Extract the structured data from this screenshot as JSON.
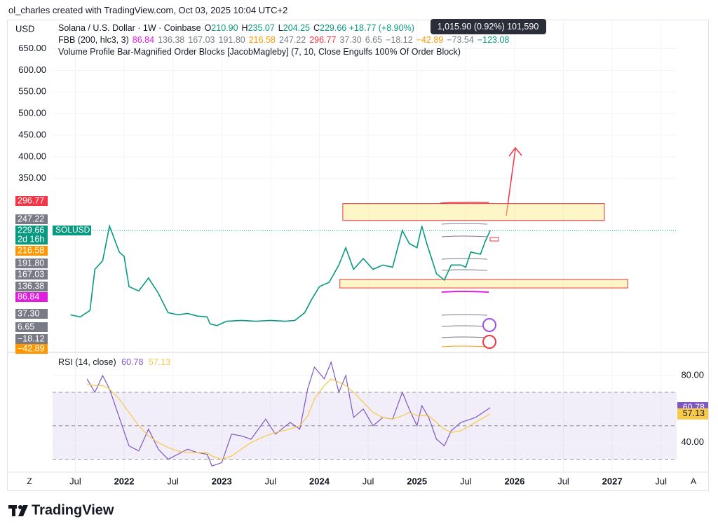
{
  "header": {
    "credit": "ol_charles created with TradingView.com, Oct 03, 2025 10:04 UTC+2",
    "currency": "USD",
    "tooltip": "1,015.90 (0.92%) 101,590"
  },
  "legend": {
    "symbol": "Solana / U.S. Dollar · 1W · Coinbase",
    "ohlc": [
      {
        "key": "O",
        "value": "210.90"
      },
      {
        "key": "H",
        "value": "235.07"
      },
      {
        "key": "L",
        "value": "204.25"
      },
      {
        "key": "C",
        "value": "229.66"
      }
    ],
    "change": "+18.77 (+8.90%)",
    "fbb_name": "FBB (200, hlc3, 3)",
    "fbb_values": [
      {
        "text": "86.84",
        "color": "#e01ee0"
      },
      {
        "text": "136.38",
        "color": "#787b86"
      },
      {
        "text": "167.03",
        "color": "#787b86"
      },
      {
        "text": "191.80",
        "color": "#787b86"
      },
      {
        "text": "216.58",
        "color": "#ff9800"
      },
      {
        "text": "247.22",
        "color": "#787b86"
      },
      {
        "text": "296.77",
        "color": "#f23645"
      },
      {
        "text": "37.30",
        "color": "#787b86"
      },
      {
        "text": "6.65",
        "color": "#787b86"
      },
      {
        "text": "−18.12",
        "color": "#787b86"
      },
      {
        "text": "−42.89",
        "color": "#ff9800"
      },
      {
        "text": "−73.54",
        "color": "#787b86"
      },
      {
        "text": "−123.08",
        "color": "#089981"
      }
    ],
    "volume_profile": "Volume Profile Bar-Magnified Order Blocks [JacobMagleby] (7, 10, Close Engulfs 100% Of Order Block)"
  },
  "badges": {
    "ticker": "SOLUSD",
    "countdown": "2d 16h"
  },
  "chart_data": [
    {
      "type": "line",
      "xlim": [
        2021.267,
        2027.66
      ],
      "ylim": [
        -47,
        714
      ],
      "xticks": [
        {
          "value": 2021.5,
          "label": "Jul"
        },
        2022,
        {
          "value": 2022.5,
          "label": "Jul"
        },
        2023,
        {
          "value": 2023.5,
          "label": "Jul"
        },
        2024,
        {
          "value": 2024.5,
          "label": "Jul"
        },
        2025,
        {
          "value": 2025.5,
          "label": "Jul"
        },
        2026,
        {
          "value": 2026.5,
          "label": "Jul"
        },
        2027,
        {
          "value": 2027.5,
          "label": "Jul"
        }
      ],
      "yticks": [
        {
          "value": 350,
          "label": "350.00"
        },
        {
          "value": 400,
          "label": "400.00"
        },
        {
          "value": 450,
          "label": "450.00"
        },
        {
          "value": 500,
          "label": "500.00"
        },
        {
          "value": 550,
          "label": "550.00"
        },
        {
          "value": 600,
          "label": "600.00"
        },
        {
          "value": 650,
          "label": "650.00"
        }
      ],
      "grid": true,
      "x": [
        2021.45,
        2021.55,
        2021.65,
        2021.7,
        2021.78,
        2021.85,
        2021.95,
        2022.0,
        2022.05,
        2022.15,
        2022.25,
        2022.35,
        2022.45,
        2022.55,
        2022.65,
        2022.75,
        2022.85,
        2022.88,
        2022.95,
        2023.05,
        2023.2,
        2023.35,
        2023.5,
        2023.65,
        2023.75,
        2023.85,
        2023.92,
        2024.0,
        2024.1,
        2024.2,
        2024.27,
        2024.35,
        2024.45,
        2024.55,
        2024.65,
        2024.75,
        2024.85,
        2024.92,
        2025.0,
        2025.05,
        2025.1,
        2025.2,
        2025.28,
        2025.35,
        2025.45,
        2025.5,
        2025.55,
        2025.65,
        2025.7,
        2025.75
      ],
      "series": [
        {
          "name": "SOLUSD",
          "color": "#089981",
          "values": [
            35,
            30,
            45,
            140,
            160,
            240,
            180,
            170,
            100,
            90,
            120,
            85,
            40,
            35,
            38,
            32,
            30,
            14,
            10,
            20,
            22,
            20,
            22,
            20,
            22,
            40,
            70,
            100,
            110,
            150,
            190,
            140,
            165,
            140,
            150,
            145,
            230,
            200,
            190,
            240,
            200,
            130,
            115,
            150,
            150,
            145,
            180,
            175,
            205,
            229.66
          ]
        }
      ],
      "zones": [
        {
          "x": [
            2024.24,
            2026.92
          ],
          "y": [
            253,
            292
          ]
        },
        {
          "x": [
            2024.21,
            2027.16
          ],
          "y": [
            97,
            117
          ]
        }
      ]
    },
    {
      "type": "line",
      "title": "RSI (14, close)",
      "ylim": [
        24,
        93
      ],
      "yticks": [
        {
          "value": 40,
          "label": "40.00"
        },
        {
          "value": 80,
          "label": "80.00"
        }
      ],
      "bands": [
        70,
        50,
        30
      ],
      "x": [
        2021.62,
        2021.7,
        2021.78,
        2021.85,
        2021.95,
        2022.05,
        2022.15,
        2022.25,
        2022.35,
        2022.45,
        2022.55,
        2022.65,
        2022.75,
        2022.85,
        2022.9,
        2023.0,
        2023.1,
        2023.2,
        2023.3,
        2023.45,
        2023.55,
        2023.7,
        2023.8,
        2023.88,
        2023.95,
        2024.05,
        2024.12,
        2024.2,
        2024.27,
        2024.35,
        2024.45,
        2024.55,
        2024.65,
        2024.75,
        2024.85,
        2024.92,
        2025.0,
        2025.05,
        2025.12,
        2025.2,
        2025.28,
        2025.35,
        2025.45,
        2025.6,
        2025.75
      ],
      "series": [
        {
          "name": "60.78",
          "color": "#7e57c2",
          "values": [
            78,
            70,
            80,
            72,
            55,
            38,
            35,
            48,
            36,
            30,
            33,
            36,
            34,
            33,
            26,
            28,
            45,
            44,
            42,
            54,
            45,
            52,
            48,
            72,
            85,
            78,
            88,
            70,
            80,
            55,
            60,
            50,
            55,
            54,
            70,
            60,
            50,
            62,
            55,
            42,
            38,
            47,
            52,
            55,
            60.78
          ]
        },
        {
          "name": "57.13",
          "color": "#f7c948",
          "values": [
            75,
            74,
            74,
            72,
            66,
            58,
            50,
            44,
            40,
            37,
            35,
            34,
            34,
            34,
            32,
            30,
            32,
            36,
            40,
            44,
            46,
            48,
            50,
            56,
            66,
            74,
            78,
            76,
            74,
            70,
            64,
            58,
            55,
            54,
            56,
            58,
            56,
            56,
            56,
            52,
            48,
            46,
            47,
            52,
            57.13
          ]
        }
      ]
    }
  ],
  "footer": {
    "left": "Z",
    "right": "A",
    "brand": "TradingView"
  }
}
